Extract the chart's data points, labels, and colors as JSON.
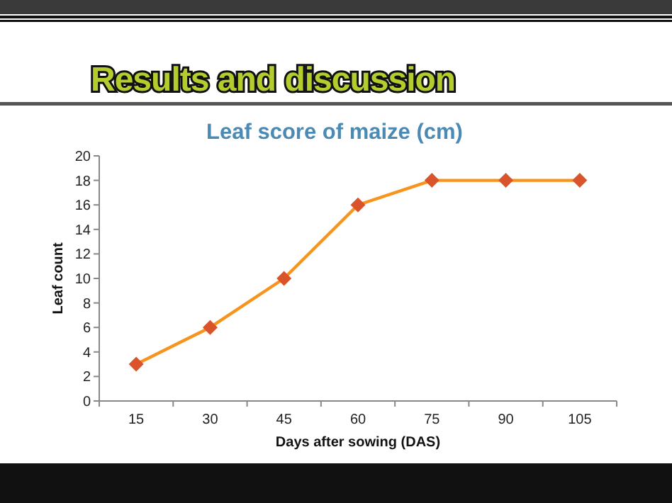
{
  "chart_data": {
    "type": "line",
    "title": "Results and discussion",
    "subtitle": "Leaf score of maize (cm)",
    "xlabel": "Days after sowing (DAS)",
    "ylabel": "Leaf count",
    "categories": [
      "15",
      "30",
      "45",
      "60",
      "75",
      "90",
      "105"
    ],
    "series": [
      {
        "color": "#f7941d",
        "values": [
          3,
          6,
          10,
          16,
          18,
          18,
          18
        ]
      }
    ],
    "ylim": [
      0,
      20
    ],
    "yticks": [
      0,
      2,
      4,
      6,
      8,
      10,
      12,
      14,
      16,
      18,
      20
    ],
    "grid": false,
    "marker": "diamond",
    "line_style": "solid"
  }
}
